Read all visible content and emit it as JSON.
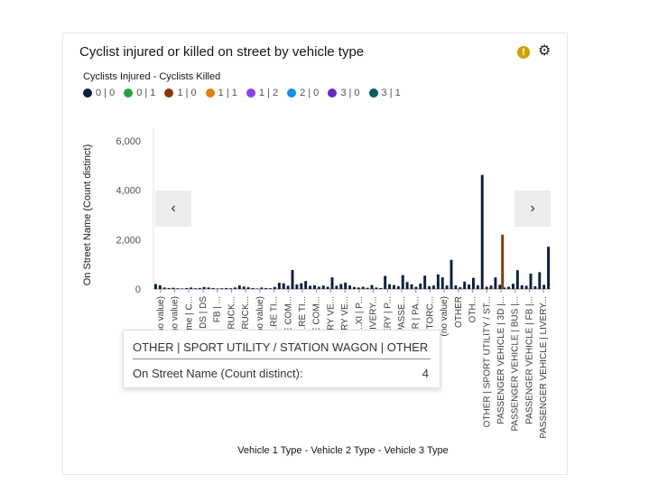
{
  "card": {
    "title": "Cyclist injured or killed on street by vehicle type",
    "warning_icon": "warning-icon",
    "settings_icon": "settings-icon"
  },
  "legend": {
    "title": "Cyclists Injured - Cyclists Killed",
    "items": [
      {
        "label": "0 | 0",
        "color": "#0a1f3f"
      },
      {
        "label": "0 | 1",
        "color": "#24a148"
      },
      {
        "label": "1 | 0",
        "color": "#8a3800"
      },
      {
        "label": "1 | 1",
        "color": "#e37d00"
      },
      {
        "label": "1 | 2",
        "color": "#8a3ffc"
      },
      {
        "label": "2 | 0",
        "color": "#1192e8"
      },
      {
        "label": "3 | 0",
        "color": "#6929c4"
      },
      {
        "label": "3 | 1",
        "color": "#005d5d"
      }
    ]
  },
  "nav": {
    "prev": "‹",
    "next": "›"
  },
  "tooltip": {
    "header": "OTHER | SPORT UTILITY / STATION WAGON | OTHER",
    "label": "On Street Name (Count distinct):",
    "value": "4"
  },
  "chart_data": {
    "type": "bar",
    "ylabel": "On Street Name (Count distinct)",
    "xlabel": "Vehicle 1 Type - Vehicle 2 Type - Vehicle 3 Type",
    "ylim": [
      0,
      6000
    ],
    "yticks": [
      0,
      2000,
      4000,
      6000
    ],
    "ytick_labels": [
      "0",
      "2,000",
      "4,000",
      "6,000"
    ],
    "grid": false,
    "category_labels": [
      "(no value)",
      "(no value)",
      "Comme | C...",
      "...DS | DS",
      "FB | ...",
      "FIRE TRUCK...",
      "FIRE TRUCK...",
      "(no value)",
      "...RE TI...",
      "LARGE COM...",
      "...RE TI...",
      "LARGE COM...",
      "...RY VE...",
      "LIVERY VE...",
      "...XI | P...",
      "LIVERY...",
      "...LIVERY | P...",
      "MD | PASSE...",
      "...R | PA...",
      "MOTORC...",
      "(no value)",
      "OTHER",
      "OTH...",
      "OTHER | SPORT UTILITY / ST...",
      "PASSENGER VEHICLE | 3D |...",
      "PASSENGER VEHICLE | BUS |...",
      "PASSENGER VEHICLE | FB |...",
      "PASSENGER VEHICLE | LIVERY..."
    ],
    "bar_count": 90,
    "series": [
      {
        "name": "0 | 0",
        "color": "#0a1f3f",
        "values": [
          200,
          150,
          60,
          40,
          50,
          30,
          20,
          40,
          60,
          30,
          40,
          80,
          60,
          40,
          20,
          30,
          40,
          30,
          60,
          140,
          100,
          70,
          40,
          20,
          60,
          40,
          30,
          80,
          250,
          230,
          130,
          770,
          180,
          230,
          320,
          130,
          150,
          90,
          140,
          90,
          470,
          130,
          200,
          260,
          140,
          80,
          60,
          90,
          50,
          160,
          60,
          40,
          530,
          190,
          160,
          110,
          560,
          280,
          190,
          90,
          220,
          540,
          110,
          140,
          590,
          470,
          140,
          1180,
          140,
          70,
          300,
          180,
          450,
          150,
          4620,
          90,
          140,
          470,
          170,
          60,
          90,
          210,
          760,
          150,
          130,
          620,
          110,
          680,
          170,
          1710
        ]
      },
      {
        "name": "1 | 0",
        "color": "#8a3800",
        "points": [
          {
            "x_index": 78,
            "value": 2200
          }
        ]
      }
    ]
  }
}
